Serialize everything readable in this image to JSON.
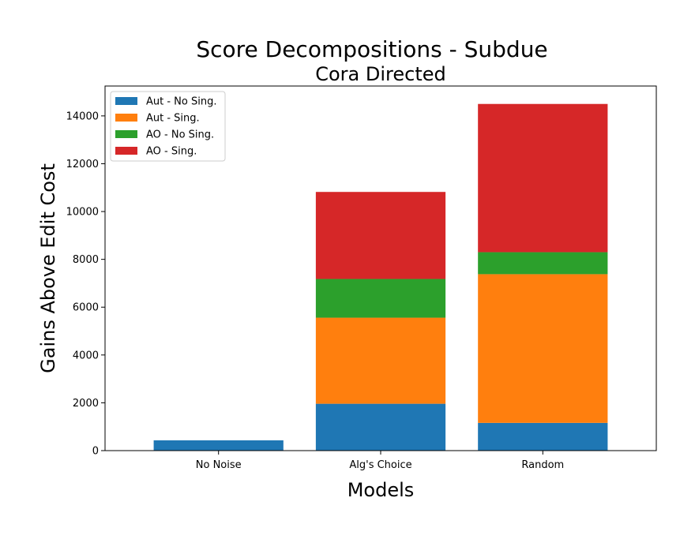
{
  "chart_data": {
    "type": "bar",
    "stacked": true,
    "title": "Score Decompositions - Subdue",
    "subtitle": "Cora Directed",
    "xlabel": "Models",
    "ylabel": "Gains Above Edit Cost",
    "categories": [
      "No Noise",
      "Alg's Choice",
      "Random"
    ],
    "ylim": [
      0,
      15250
    ],
    "yticks": [
      0,
      2000,
      4000,
      6000,
      8000,
      10000,
      12000,
      14000
    ],
    "ytick_labels": [
      "0",
      "2000",
      "4000",
      "6000",
      "8000",
      "10000",
      "12000",
      "14000"
    ],
    "series": [
      {
        "name": "Aut - No Sing.",
        "values": [
          430,
          1960,
          1160
        ],
        "color": "#1f77b4"
      },
      {
        "name": "Aut - Sing.",
        "values": [
          0,
          3600,
          6220
        ],
        "color": "#ff7f0e"
      },
      {
        "name": "AO - No Sing.",
        "values": [
          0,
          1620,
          920
        ],
        "color": "#2ca02c"
      },
      {
        "name": "AO - Sing.",
        "values": [
          0,
          3640,
          6200
        ],
        "color": "#d62728"
      }
    ],
    "legend_position": "top-left",
    "grid": false
  }
}
